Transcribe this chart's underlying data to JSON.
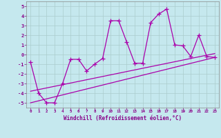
{
  "xlabel": "Windchill (Refroidissement éolien,°C)",
  "background_color": "#c5e8ee",
  "line_color": "#aa00aa",
  "grid_color": "#aacccc",
  "x_values": [
    0,
    1,
    2,
    3,
    4,
    5,
    6,
    7,
    8,
    9,
    10,
    11,
    12,
    13,
    14,
    15,
    16,
    17,
    18,
    19,
    20,
    21,
    22,
    23
  ],
  "series1": [
    -0.8,
    -4.0,
    -5.0,
    -5.0,
    -3.0,
    -0.5,
    -0.5,
    -1.7,
    -1.0,
    -0.4,
    3.5,
    3.5,
    1.3,
    -0.9,
    -0.9,
    3.3,
    4.2,
    4.7,
    1.0,
    0.9,
    -0.2,
    2.0,
    -0.2,
    -0.3
  ],
  "line2_x": [
    0,
    23
  ],
  "line2_y": [
    -3.8,
    0.1
  ],
  "line3_x": [
    0,
    23
  ],
  "line3_y": [
    -5.0,
    -0.3
  ],
  "ylim": [
    -5.5,
    5.5
  ],
  "xlim": [
    -0.5,
    23.5
  ],
  "yticks": [
    -5,
    -4,
    -3,
    -2,
    -1,
    0,
    1,
    2,
    3,
    4,
    5
  ],
  "xticks": [
    0,
    1,
    2,
    3,
    4,
    5,
    6,
    7,
    8,
    9,
    10,
    11,
    12,
    13,
    14,
    15,
    16,
    17,
    18,
    19,
    20,
    21,
    22,
    23
  ],
  "tick_color": "#880088",
  "label_color": "#880088"
}
